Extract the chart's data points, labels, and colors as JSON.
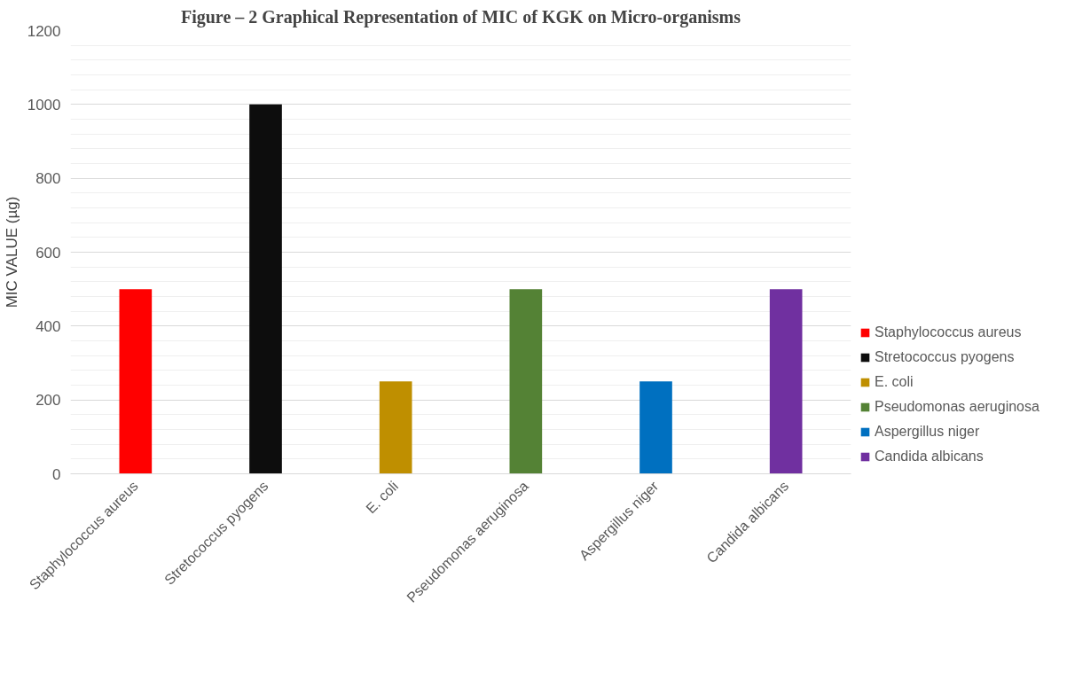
{
  "chart_data": {
    "type": "bar",
    "title": "Figure – 2 Graphical Representation of MIC of KGK on Micro-organisms",
    "ylabel": "MIC VALUE (µg)",
    "categories": [
      "Staphylococcus aureus",
      "Stretococcus pyogens",
      "E. coli",
      "Pseudomonas aeruginosa",
      "Aspergillus niger",
      "Candida albicans"
    ],
    "series": [
      {
        "name": "Staphylococcus aureus",
        "color": "#ff0000",
        "values": [
          500,
          null,
          null,
          null,
          null,
          null
        ]
      },
      {
        "name": "Stretococcus pyogens",
        "color": "#0d0d0d",
        "values": [
          null,
          1000,
          null,
          null,
          null,
          null
        ]
      },
      {
        "name": "E. coli",
        "color": "#bf8f00",
        "values": [
          null,
          null,
          250,
          null,
          null,
          null
        ]
      },
      {
        "name": "Pseudomonas aeruginosa",
        "color": "#548235",
        "values": [
          null,
          null,
          null,
          500,
          null,
          null
        ]
      },
      {
        "name": "Aspergillus niger",
        "color": "#0070c0",
        "values": [
          null,
          null,
          null,
          null,
          250,
          null
        ]
      },
      {
        "name": "Candida albicans",
        "color": "#7030a0",
        "values": [
          null,
          null,
          null,
          null,
          null,
          500
        ]
      }
    ],
    "ylim": [
      0,
      1200
    ],
    "yticks": [
      0,
      200,
      400,
      600,
      800,
      1000,
      1200
    ],
    "grid": "y",
    "legend": "bottom right"
  }
}
